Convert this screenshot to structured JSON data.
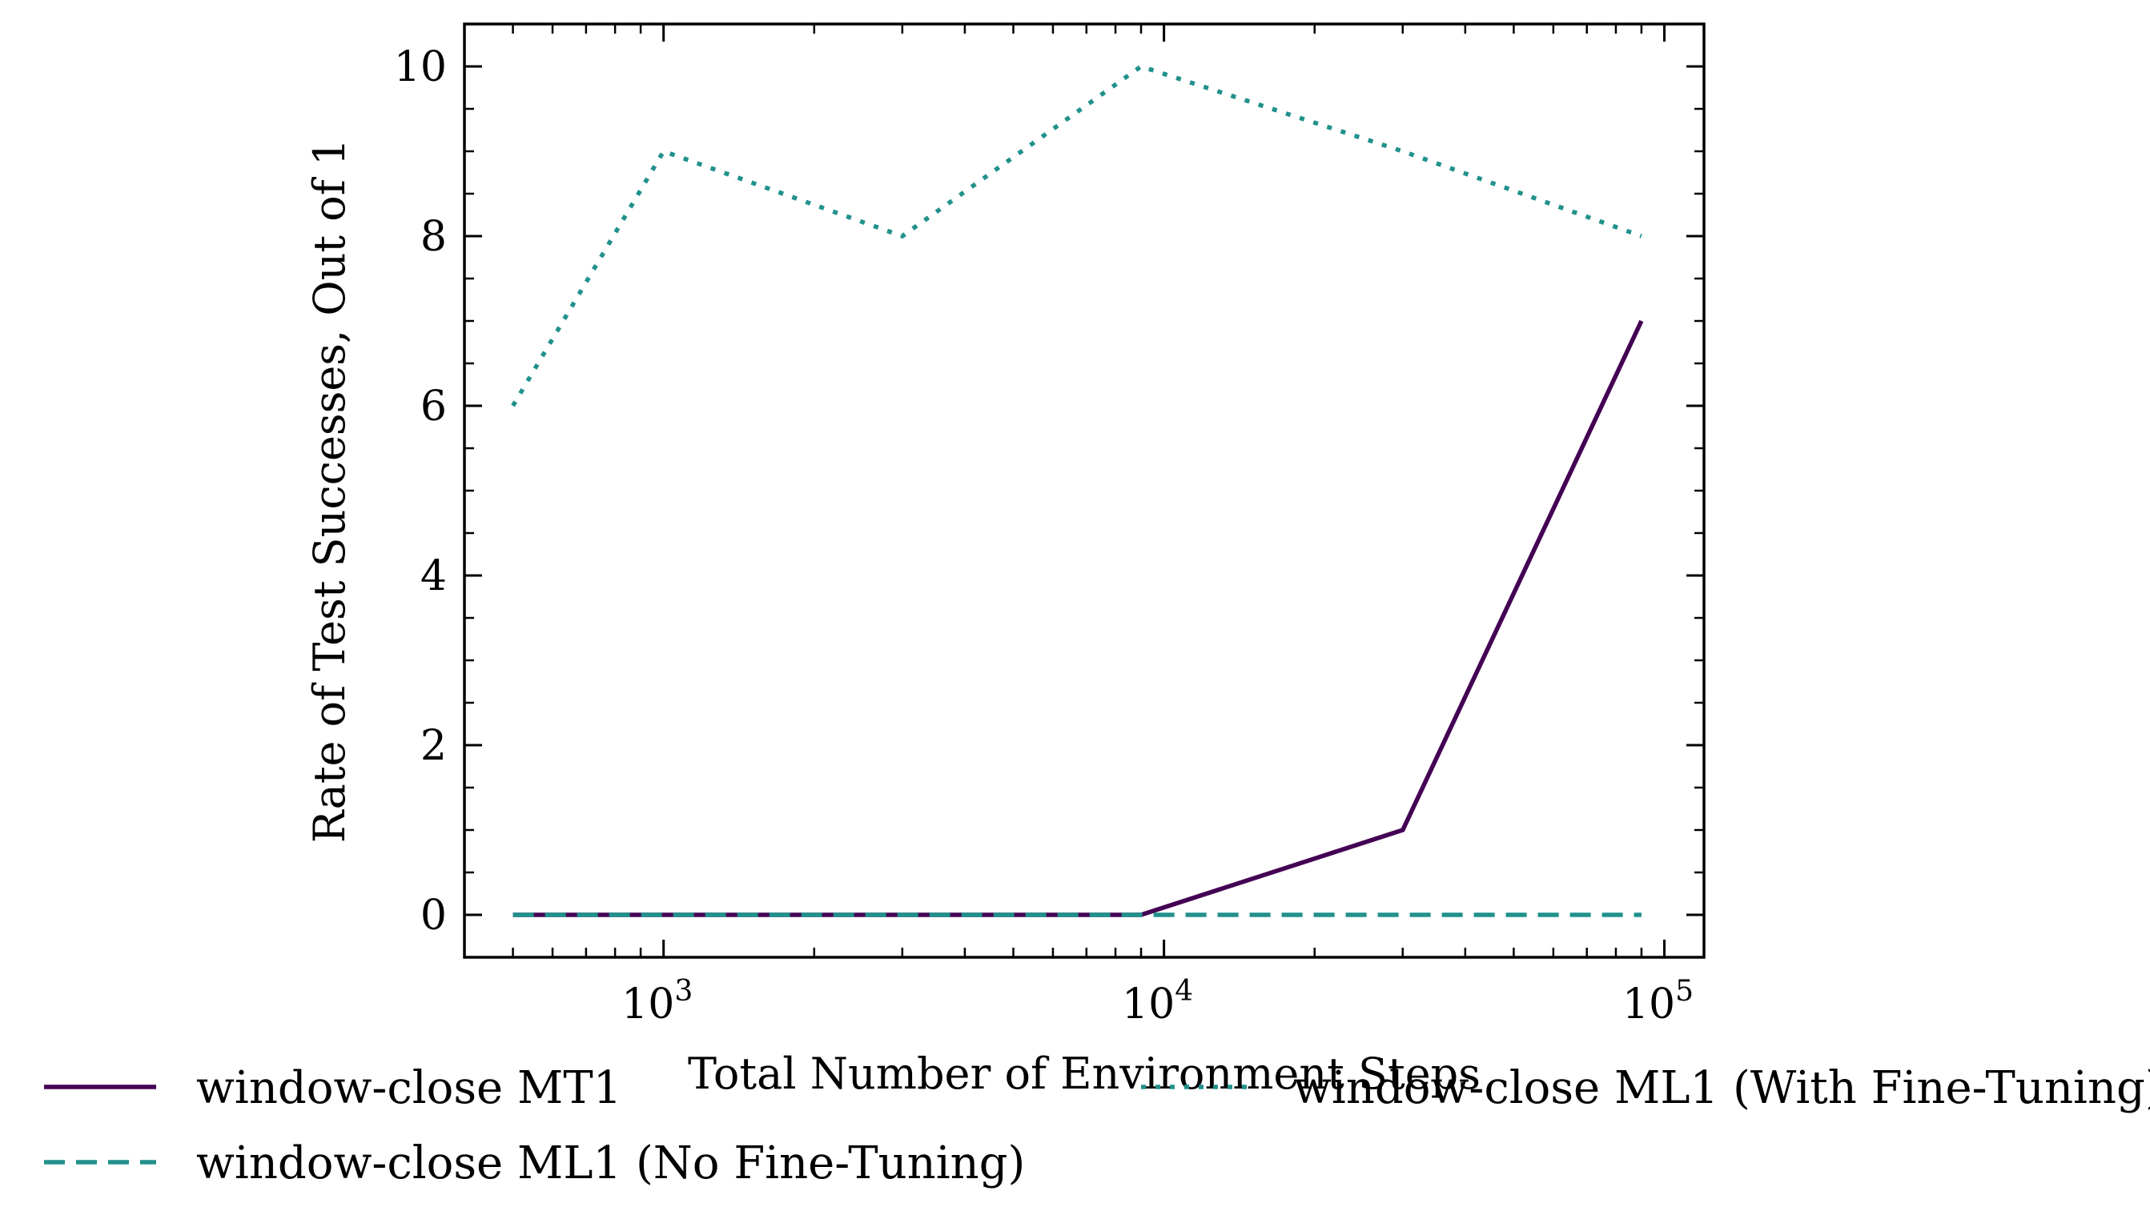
{
  "chart_data": {
    "type": "line",
    "xscale": "log",
    "xlabel": "Total Number of Environment Steps",
    "ylabel": "Rate of Test Successes, Out of 1",
    "xlim": [
      400,
      120000
    ],
    "ylim": [
      -0.5,
      10.5
    ],
    "x_ticks": [
      {
        "value": 1000,
        "mantissa": "10",
        "exp": "3"
      },
      {
        "value": 10000,
        "mantissa": "10",
        "exp": "4"
      },
      {
        "value": 100000,
        "mantissa": "10",
        "exp": "5"
      }
    ],
    "y_ticks": [
      0,
      2,
      4,
      6,
      8,
      10
    ],
    "y_tick_labels": [
      "0",
      "2",
      "4",
      "6",
      "8",
      "10"
    ],
    "x": [
      500,
      1000,
      3000,
      9000,
      30000,
      90000
    ],
    "series": [
      {
        "name": "window-close MT1",
        "values": [
          0,
          0,
          0,
          0,
          1,
          7
        ],
        "color": "#440154",
        "style": "solid"
      },
      {
        "name": "window-close ML1 (No Fine-Tuning)",
        "values": [
          0,
          0,
          0,
          0,
          0,
          0
        ],
        "color": "#21918c",
        "style": "dashed"
      },
      {
        "name": "window-close ML1 (With Fine-Tuning)",
        "values": [
          6,
          9,
          8,
          10,
          9,
          8
        ],
        "color": "#21918c",
        "style": "dotted"
      }
    ],
    "grid": false,
    "legend": "below"
  }
}
